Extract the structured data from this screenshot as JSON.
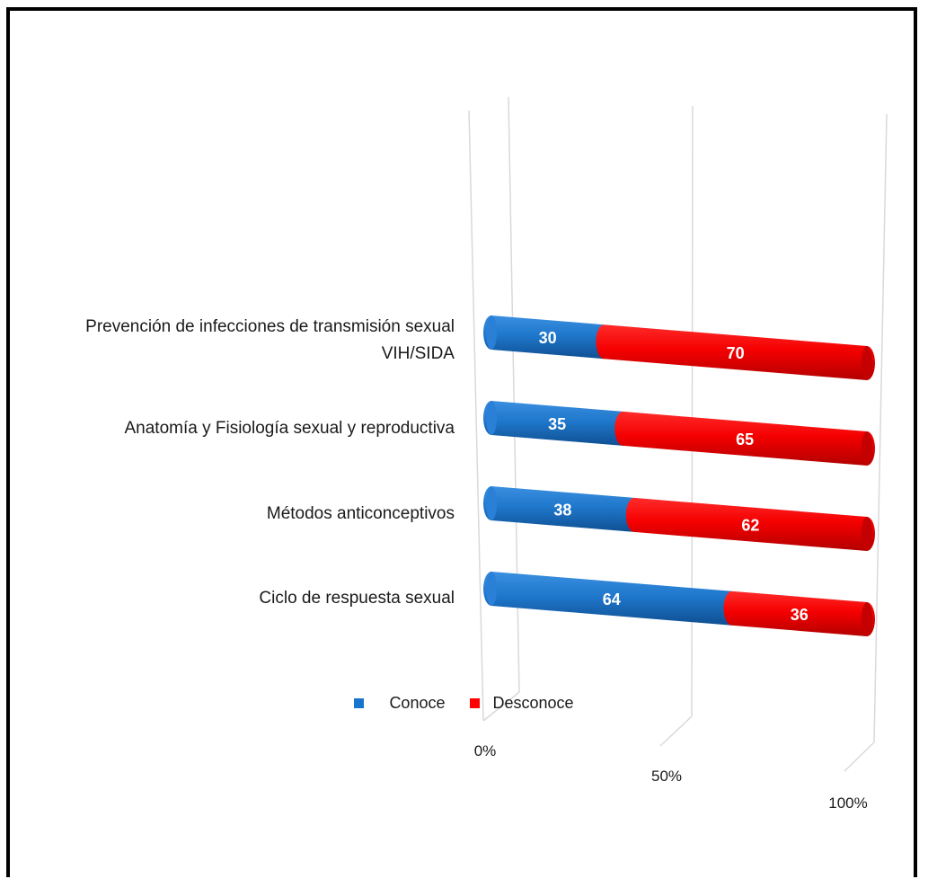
{
  "chart_data": {
    "type": "bar",
    "orientation": "horizontal",
    "stacked": true,
    "percent_stacked": true,
    "style": "3d-cylinder",
    "categories": [
      [
        "Prevención de infecciones de transmisión sexual",
        "VIH/SIDA"
      ],
      [
        "Anatomía y Fisiología sexual y reproductiva"
      ],
      [
        "Métodos anticonceptivos"
      ],
      [
        "Ciclo de respuesta sexual"
      ]
    ],
    "series": [
      {
        "name": "Conoce",
        "color": "#1874CD",
        "values": [
          30,
          35,
          38,
          64
        ]
      },
      {
        "name": "Desconoce",
        "color": "#FF0000",
        "values": [
          70,
          65,
          62,
          36
        ]
      }
    ],
    "xaxis": {
      "ticks": [
        "0%",
        "50%",
        "100%"
      ],
      "range": [
        0,
        100
      ]
    },
    "grid": true,
    "legend_position": "bottom"
  }
}
